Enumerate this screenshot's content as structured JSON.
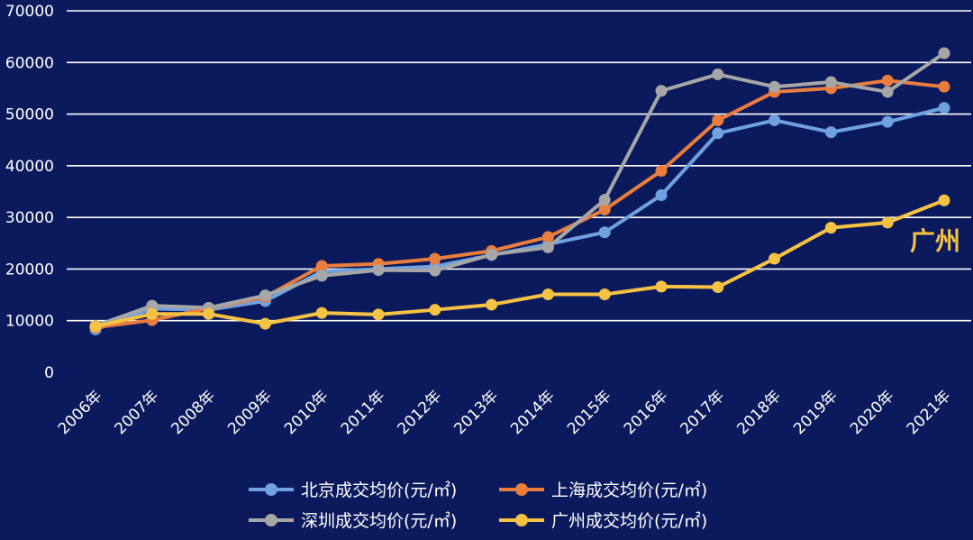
{
  "chart_data": {
    "type": "line",
    "categories": [
      "2006年",
      "2007年",
      "2008年",
      "2009年",
      "2010年",
      "2011年",
      "2012年",
      "2013年",
      "2014年",
      "2015年",
      "2016年",
      "2017年",
      "2018年",
      "2019年",
      "2020年",
      "2021年"
    ],
    "ylim": [
      0,
      70000
    ],
    "y_ticks": [
      "0",
      "10000",
      "20000",
      "30000",
      "40000",
      "50000",
      "60000",
      "70000"
    ],
    "grid": true,
    "legend_position": "bottom",
    "series": [
      {
        "name": "北京成交均价(元/㎡)",
        "color": "#6fa1e0",
        "values": [
          8300,
          12300,
          12100,
          13800,
          19500,
          20000,
          20500,
          22700,
          24800,
          27100,
          34300,
          46300,
          48800,
          46500,
          48500,
          51200
        ]
      },
      {
        "name": "上海成交均价(元/㎡)",
        "color": "#e87d3e",
        "values": [
          8700,
          10100,
          12400,
          14600,
          20600,
          21000,
          22000,
          23500,
          26200,
          31500,
          39000,
          48800,
          54300,
          55000,
          56500,
          55300
        ]
      },
      {
        "name": "深圳成交均价(元/㎡)",
        "color": "#a6a6a6",
        "values": [
          9000,
          12900,
          12500,
          14900,
          18700,
          19800,
          19700,
          22800,
          24200,
          33400,
          54500,
          57700,
          55300,
          56200,
          54300,
          61800
        ]
      },
      {
        "name": "广州成交均价(元/㎡)",
        "color": "#f5c244",
        "values": [
          8900,
          11300,
          11300,
          9400,
          11500,
          11200,
          12100,
          13100,
          15100,
          15100,
          16600,
          16500,
          22000,
          28000,
          29000,
          33300
        ]
      }
    ],
    "annotation": {
      "text": "广州",
      "color": "#f5c244"
    }
  }
}
